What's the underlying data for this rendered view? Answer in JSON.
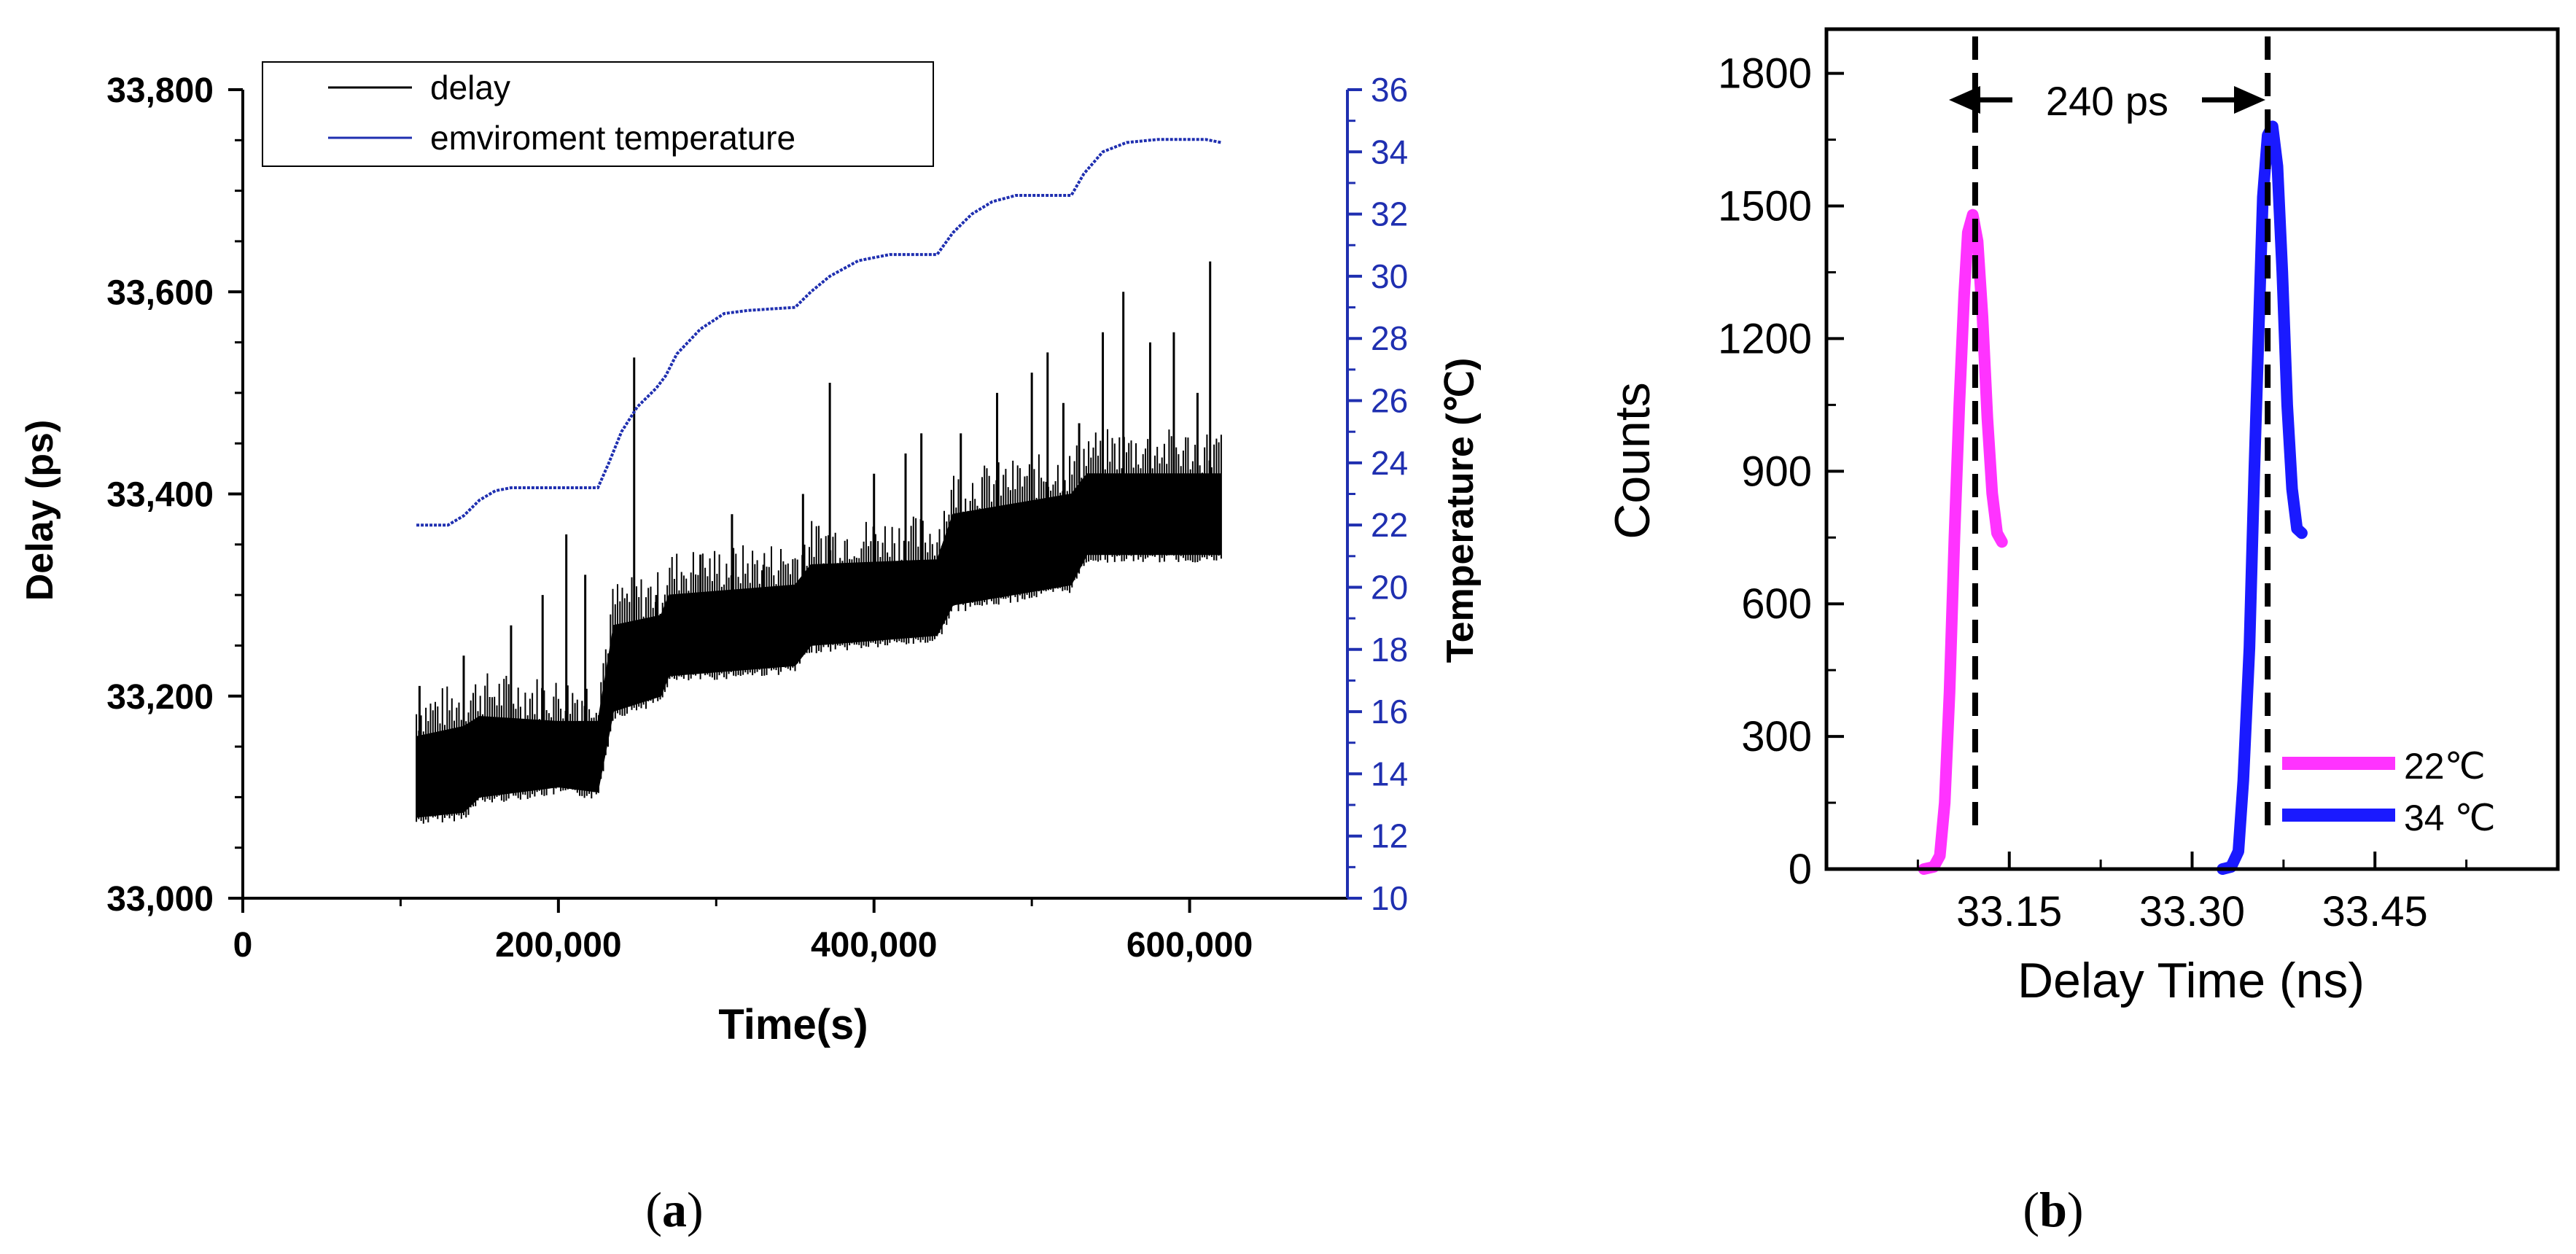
{
  "chart_data": [
    {
      "type": "line",
      "panel": "a",
      "xlabel": "Time(s)",
      "ylabel": "Delay (ps)",
      "y2label": "Temperature (℃)",
      "xlim": [
        0,
        700000
      ],
      "ylim": [
        33000,
        33800
      ],
      "y2lim": [
        10,
        36
      ],
      "x_ticks": [
        0,
        200000,
        400000,
        600000
      ],
      "x_tick_labels": [
        "0",
        "200,000",
        "400,000",
        "600,000"
      ],
      "y_ticks": [
        33000,
        33200,
        33400,
        33600,
        33800
      ],
      "y_tick_labels": [
        "33,000",
        "33,200",
        "33,400",
        "33,600",
        "33,800"
      ],
      "y2_ticks": [
        10,
        12,
        14,
        16,
        18,
        20,
        22,
        24,
        26,
        28,
        30,
        32,
        34,
        36
      ],
      "y2_tick_labels": [
        "10",
        "12",
        "14",
        "16",
        "18",
        "20",
        "22",
        "24",
        "26",
        "28",
        "30",
        "32",
        "34",
        "36"
      ],
      "legend_position": "top-left",
      "series": [
        {
          "name": "delay",
          "color": "#000000",
          "axis": "left",
          "band": [
            [
              110000,
              33080,
              33160
            ],
            [
              140000,
              33085,
              33170
            ],
            [
              150000,
              33100,
              33180
            ],
            [
              200000,
              33110,
              33175
            ],
            [
              225000,
              33105,
              33175
            ],
            [
              235000,
              33185,
              33270
            ],
            [
              265000,
              33200,
              33280
            ],
            [
              270000,
              33220,
              33300
            ],
            [
              350000,
              33230,
              33310
            ],
            [
              360000,
              33250,
              33330
            ],
            [
              440000,
              33260,
              33335
            ],
            [
              450000,
              33290,
              33380
            ],
            [
              525000,
              33310,
              33400
            ],
            [
              535000,
              33340,
              33420
            ],
            [
              620000,
              33340,
              33420
            ]
          ],
          "spikes": [
            [
              112000,
              33210
            ],
            [
              140000,
              33240
            ],
            [
              170000,
              33270
            ],
            [
              190000,
              33300
            ],
            [
              205000,
              33360
            ],
            [
              217000,
              33320
            ],
            [
              248000,
              33535
            ],
            [
              262000,
              33300
            ],
            [
              290000,
              33340
            ],
            [
              310000,
              33380
            ],
            [
              330000,
              33330
            ],
            [
              355000,
              33400
            ],
            [
              372000,
              33510
            ],
            [
              400000,
              33420
            ],
            [
              420000,
              33440
            ],
            [
              430000,
              33460
            ],
            [
              455000,
              33460
            ],
            [
              478000,
              33500
            ],
            [
              500000,
              33520
            ],
            [
              510000,
              33540
            ],
            [
              520000,
              33490
            ],
            [
              530000,
              33470
            ],
            [
              545000,
              33560
            ],
            [
              558000,
              33600
            ],
            [
              575000,
              33550
            ],
            [
              590000,
              33560
            ],
            [
              605000,
              33500
            ],
            [
              613000,
              33630
            ]
          ]
        },
        {
          "name": "emviroment temperature",
          "color": "#1f2fb0",
          "axis": "right",
          "points": [
            [
              110000,
              22.0
            ],
            [
              130000,
              22.0
            ],
            [
              140000,
              22.3
            ],
            [
              150000,
              22.8
            ],
            [
              160000,
              23.1
            ],
            [
              170000,
              23.2
            ],
            [
              225000,
              23.2
            ],
            [
              232000,
              24.0
            ],
            [
              240000,
              25.0
            ],
            [
              250000,
              25.8
            ],
            [
              262000,
              26.4
            ],
            [
              268000,
              26.8
            ],
            [
              275000,
              27.5
            ],
            [
              290000,
              28.3
            ],
            [
              305000,
              28.8
            ],
            [
              320000,
              28.9
            ],
            [
              350000,
              29.0
            ],
            [
              360000,
              29.5
            ],
            [
              372000,
              30.0
            ],
            [
              390000,
              30.5
            ],
            [
              410000,
              30.7
            ],
            [
              440000,
              30.7
            ],
            [
              450000,
              31.4
            ],
            [
              462000,
              32.0
            ],
            [
              475000,
              32.4
            ],
            [
              490000,
              32.6
            ],
            [
              525000,
              32.6
            ],
            [
              533000,
              33.3
            ],
            [
              545000,
              34.0
            ],
            [
              560000,
              34.3
            ],
            [
              580000,
              34.4
            ],
            [
              610000,
              34.4
            ],
            [
              620000,
              34.3
            ]
          ]
        }
      ],
      "caption": "a"
    },
    {
      "type": "line",
      "panel": "b",
      "xlabel": "Delay Time (ns)",
      "ylabel": "Counts",
      "xlim": [
        33.0,
        33.6
      ],
      "ylim": [
        0,
        1900
      ],
      "x_ticks": [
        33.15,
        33.3,
        33.45
      ],
      "x_tick_labels": [
        "33.15",
        "33.30",
        "33.45"
      ],
      "y_ticks": [
        0,
        300,
        600,
        900,
        1200,
        1500,
        1800
      ],
      "y_tick_labels": [
        "0",
        "300",
        "600",
        "900",
        "1200",
        "1500",
        "1800"
      ],
      "legend_position": "bottom-right",
      "series": [
        {
          "name": "22℃",
          "color": "#ff33ff",
          "points": [
            [
              33.08,
              0
            ],
            [
              33.088,
              5
            ],
            [
              33.093,
              30
            ],
            [
              33.097,
              150
            ],
            [
              33.101,
              400
            ],
            [
              33.105,
              750
            ],
            [
              33.109,
              1050
            ],
            [
              33.113,
              1300
            ],
            [
              33.116,
              1440
            ],
            [
              33.12,
              1480
            ],
            [
              33.124,
              1420
            ],
            [
              33.128,
              1250
            ],
            [
              33.132,
              1020
            ],
            [
              33.136,
              850
            ],
            [
              33.14,
              760
            ],
            [
              33.144,
              740
            ]
          ]
        },
        {
          "name": "34 ℃",
          "color": "#1a1aff",
          "points": [
            [
              33.325,
              0
            ],
            [
              33.332,
              5
            ],
            [
              33.338,
              40
            ],
            [
              33.342,
              200
            ],
            [
              33.347,
              500
            ],
            [
              33.351,
              900
            ],
            [
              33.355,
              1250
            ],
            [
              33.358,
              1520
            ],
            [
              33.362,
              1660
            ],
            [
              33.366,
              1680
            ],
            [
              33.37,
              1590
            ],
            [
              33.374,
              1350
            ],
            [
              33.378,
              1050
            ],
            [
              33.382,
              860
            ],
            [
              33.386,
              770
            ],
            [
              33.39,
              760
            ]
          ]
        }
      ],
      "markers": [
        33.122,
        33.362
      ],
      "annotation": "240 ps",
      "caption": "b"
    }
  ]
}
